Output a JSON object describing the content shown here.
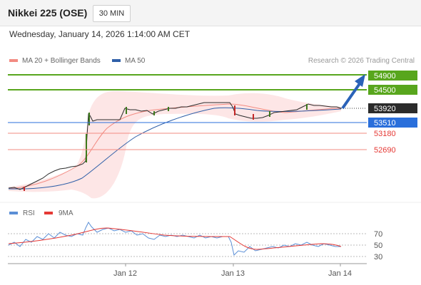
{
  "header": {
    "title": "Nikkei 225 (OSE)",
    "timeframe": "30 MIN"
  },
  "datetime": "Wednesday, January 14, 2026 1:14:00 AM CET",
  "legend": {
    "ma_bb": "MA 20 + Bollinger Bands",
    "ma50": "MA 50",
    "credit": "Research © 2026 Trading Central",
    "ma_bb_color": "#f28b82",
    "ma50_color": "#2f5fa8"
  },
  "levels": [
    {
      "value": "54900",
      "kind": "resistance",
      "color": "#58a61d"
    },
    {
      "value": "54500",
      "kind": "resistance",
      "color": "#58a61d"
    },
    {
      "value": "53920",
      "kind": "current",
      "color": "#333333"
    },
    {
      "value": "53510",
      "kind": "pivot",
      "color": "#2a6fdb"
    },
    {
      "value": "53180",
      "kind": "support",
      "color": "#e53935"
    },
    {
      "value": "52690",
      "kind": "support",
      "color": "#e53935"
    }
  ],
  "rsi": {
    "legend_rsi": "RSI",
    "legend_ma": "9MA",
    "rsi_color": "#5b8fd6",
    "ma_color": "#e53935",
    "ticks": [
      "70",
      "50",
      "30"
    ]
  },
  "xaxis": {
    "labels": [
      "Jan 12",
      "Jan 13",
      "Jan 14"
    ]
  }
}
